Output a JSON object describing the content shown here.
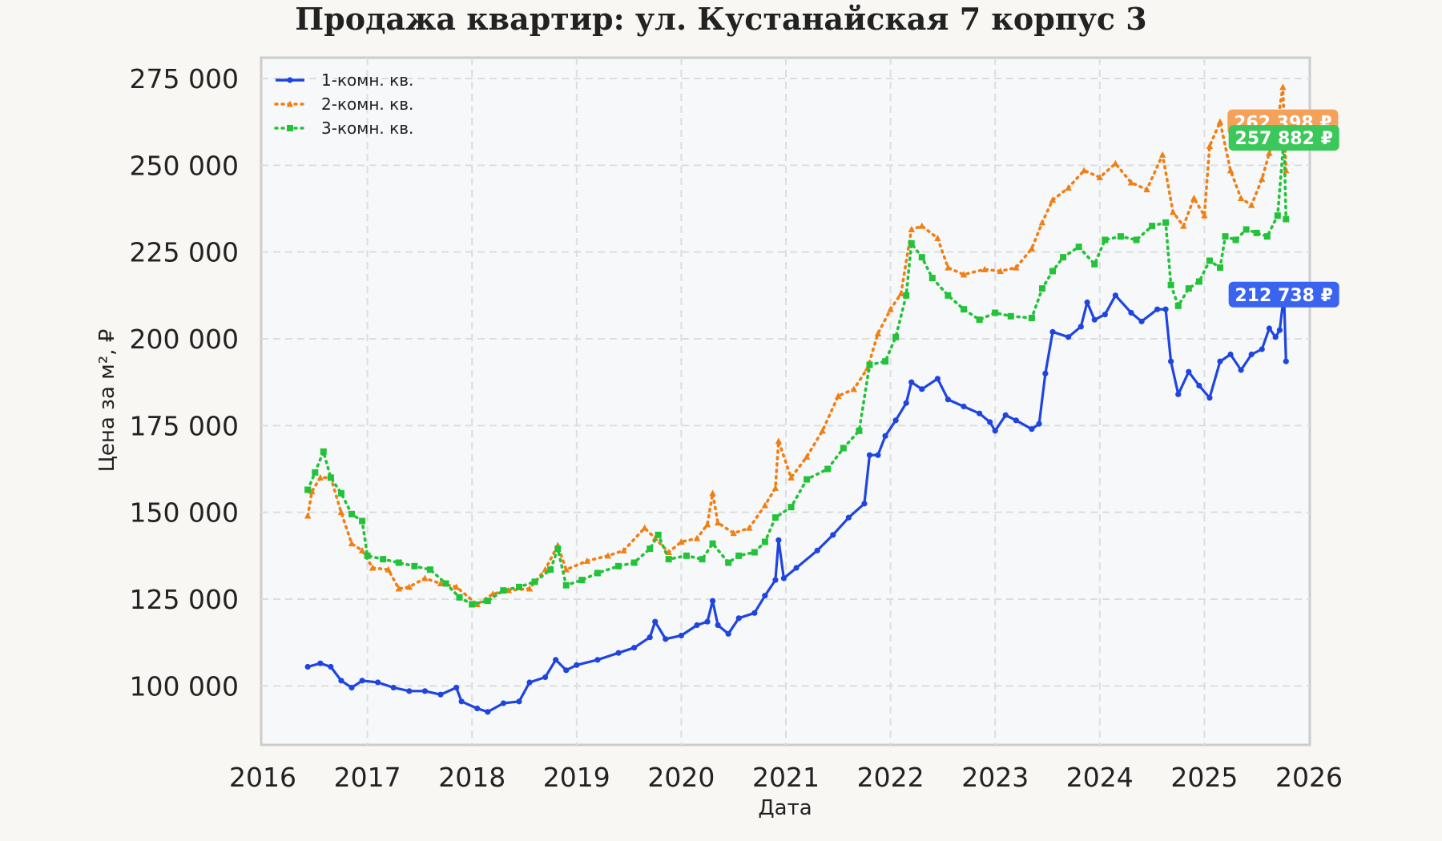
{
  "chart_data": {
    "type": "line",
    "title": "Продажа квартир: ул. Кустанайская 7 корпус 3",
    "xlabel": "Дата",
    "ylabel": "Цена за м², ₽",
    "xlim": [
      2016.0,
      2026.0
    ],
    "ylim": [
      83000,
      281000
    ],
    "x_ticks": [
      "2016",
      "2017",
      "2018",
      "2019",
      "2020",
      "2021",
      "2022",
      "2023",
      "2024",
      "2025",
      "2026"
    ],
    "y_ticks": [
      "100 000",
      "125 000",
      "150 000",
      "175 000",
      "200 000",
      "225 000",
      "250 000",
      "275 000"
    ],
    "grid": true,
    "legend_position": "top-left",
    "series": [
      {
        "name": "1-комн. кв.",
        "color": "#1f45e0",
        "line_style": "solid",
        "marker": "circle",
        "points": [
          [
            2016.43,
            105500
          ],
          [
            2016.55,
            106500
          ],
          [
            2016.65,
            105500
          ],
          [
            2016.75,
            101500
          ],
          [
            2016.85,
            99500
          ],
          [
            2016.95,
            101500
          ],
          [
            2017.1,
            101000
          ],
          [
            2017.25,
            99500
          ],
          [
            2017.4,
            98500
          ],
          [
            2017.55,
            98500
          ],
          [
            2017.7,
            97500
          ],
          [
            2017.85,
            99500
          ],
          [
            2017.9,
            95500
          ],
          [
            2018.05,
            93500
          ],
          [
            2018.15,
            92500
          ],
          [
            2018.3,
            95000
          ],
          [
            2018.45,
            95500
          ],
          [
            2018.55,
            101000
          ],
          [
            2018.7,
            102500
          ],
          [
            2018.8,
            107500
          ],
          [
            2018.9,
            104500
          ],
          [
            2019.0,
            106000
          ],
          [
            2019.2,
            107500
          ],
          [
            2019.4,
            109500
          ],
          [
            2019.55,
            111000
          ],
          [
            2019.7,
            114000
          ],
          [
            2019.75,
            118500
          ],
          [
            2019.85,
            113500
          ],
          [
            2020.0,
            114500
          ],
          [
            2020.15,
            117500
          ],
          [
            2020.25,
            118500
          ],
          [
            2020.3,
            124500
          ],
          [
            2020.35,
            117500
          ],
          [
            2020.45,
            115000
          ],
          [
            2020.55,
            119500
          ],
          [
            2020.7,
            121000
          ],
          [
            2020.8,
            126000
          ],
          [
            2020.9,
            130500
          ],
          [
            2020.93,
            142000
          ],
          [
            2020.98,
            131000
          ],
          [
            2021.1,
            134000
          ],
          [
            2021.3,
            139000
          ],
          [
            2021.45,
            143500
          ],
          [
            2021.6,
            148500
          ],
          [
            2021.75,
            152500
          ],
          [
            2021.8,
            166500
          ],
          [
            2021.88,
            166500
          ],
          [
            2021.95,
            172000
          ],
          [
            2022.05,
            176500
          ],
          [
            2022.15,
            181500
          ],
          [
            2022.2,
            187500
          ],
          [
            2022.3,
            185500
          ],
          [
            2022.45,
            188500
          ],
          [
            2022.55,
            182500
          ],
          [
            2022.7,
            180500
          ],
          [
            2022.85,
            178500
          ],
          [
            2022.95,
            176000
          ],
          [
            2023.0,
            173500
          ],
          [
            2023.1,
            178000
          ],
          [
            2023.2,
            176500
          ],
          [
            2023.35,
            174000
          ],
          [
            2023.42,
            175500
          ],
          [
            2023.48,
            190000
          ],
          [
            2023.55,
            202000
          ],
          [
            2023.7,
            200500
          ],
          [
            2023.82,
            203500
          ],
          [
            2023.88,
            210500
          ],
          [
            2023.95,
            205500
          ],
          [
            2024.05,
            207000
          ],
          [
            2024.15,
            212500
          ],
          [
            2024.3,
            207500
          ],
          [
            2024.4,
            205000
          ],
          [
            2024.55,
            208500
          ],
          [
            2024.63,
            208500
          ],
          [
            2024.68,
            193500
          ],
          [
            2024.75,
            184000
          ],
          [
            2024.85,
            190500
          ],
          [
            2024.95,
            186500
          ],
          [
            2025.05,
            183000
          ],
          [
            2025.15,
            193500
          ],
          [
            2025.25,
            195500
          ],
          [
            2025.35,
            191000
          ],
          [
            2025.45,
            195500
          ],
          [
            2025.55,
            197000
          ],
          [
            2025.62,
            203000
          ],
          [
            2025.68,
            200500
          ],
          [
            2025.72,
            202500
          ],
          [
            2025.76,
            212738
          ],
          [
            2025.78,
            193500
          ]
        ]
      },
      {
        "name": "2-комн. кв.",
        "color": "#f07f14",
        "line_style": "dotted",
        "marker": "triangle",
        "points": [
          [
            2016.43,
            149000
          ],
          [
            2016.47,
            156000
          ],
          [
            2016.55,
            160000
          ],
          [
            2016.65,
            160000
          ],
          [
            2016.75,
            150000
          ],
          [
            2016.85,
            141000
          ],
          [
            2016.95,
            139000
          ],
          [
            2017.05,
            134000
          ],
          [
            2017.2,
            133500
          ],
          [
            2017.3,
            128000
          ],
          [
            2017.4,
            128500
          ],
          [
            2017.55,
            131000
          ],
          [
            2017.7,
            129500
          ],
          [
            2017.85,
            128500
          ],
          [
            2018.05,
            123500
          ],
          [
            2018.2,
            126500
          ],
          [
            2018.35,
            127500
          ],
          [
            2018.55,
            128000
          ],
          [
            2018.7,
            133500
          ],
          [
            2018.82,
            140500
          ],
          [
            2018.9,
            133500
          ],
          [
            2019.1,
            136000
          ],
          [
            2019.3,
            137500
          ],
          [
            2019.45,
            139000
          ],
          [
            2019.65,
            145500
          ],
          [
            2019.75,
            142500
          ],
          [
            2019.88,
            138500
          ],
          [
            2020.0,
            141500
          ],
          [
            2020.15,
            142500
          ],
          [
            2020.25,
            146500
          ],
          [
            2020.3,
            155500
          ],
          [
            2020.35,
            147000
          ],
          [
            2020.5,
            144000
          ],
          [
            2020.65,
            145500
          ],
          [
            2020.8,
            152000
          ],
          [
            2020.9,
            157000
          ],
          [
            2020.93,
            170500
          ],
          [
            2021.05,
            160000
          ],
          [
            2021.2,
            166000
          ],
          [
            2021.35,
            173500
          ],
          [
            2021.5,
            183500
          ],
          [
            2021.65,
            185500
          ],
          [
            2021.78,
            191500
          ],
          [
            2021.88,
            201500
          ],
          [
            2022.0,
            208500
          ],
          [
            2022.1,
            213000
          ],
          [
            2022.2,
            231500
          ],
          [
            2022.3,
            232500
          ],
          [
            2022.45,
            229000
          ],
          [
            2022.55,
            220500
          ],
          [
            2022.7,
            218500
          ],
          [
            2022.9,
            220000
          ],
          [
            2023.05,
            219500
          ],
          [
            2023.2,
            220500
          ],
          [
            2023.35,
            226000
          ],
          [
            2023.45,
            233500
          ],
          [
            2023.55,
            240000
          ],
          [
            2023.7,
            243500
          ],
          [
            2023.85,
            248500
          ],
          [
            2024.0,
            246500
          ],
          [
            2024.15,
            250500
          ],
          [
            2024.3,
            245000
          ],
          [
            2024.45,
            243000
          ],
          [
            2024.6,
            253000
          ],
          [
            2024.7,
            236500
          ],
          [
            2024.8,
            232500
          ],
          [
            2024.9,
            240500
          ],
          [
            2025.0,
            235500
          ],
          [
            2025.05,
            255500
          ],
          [
            2025.15,
            262500
          ],
          [
            2025.25,
            248500
          ],
          [
            2025.35,
            240500
          ],
          [
            2025.45,
            238500
          ],
          [
            2025.55,
            246000
          ],
          [
            2025.62,
            253500
          ],
          [
            2025.7,
            262398
          ],
          [
            2025.75,
            272500
          ],
          [
            2025.78,
            248500
          ]
        ]
      },
      {
        "name": "3-комн. кв.",
        "color": "#22c239",
        "line_style": "dotted",
        "marker": "square",
        "points": [
          [
            2016.43,
            156500
          ],
          [
            2016.5,
            161500
          ],
          [
            2016.58,
            167500
          ],
          [
            2016.65,
            160000
          ],
          [
            2016.75,
            155500
          ],
          [
            2016.85,
            149500
          ],
          [
            2016.95,
            147500
          ],
          [
            2017.0,
            137500
          ],
          [
            2017.15,
            136500
          ],
          [
            2017.3,
            135500
          ],
          [
            2017.45,
            134500
          ],
          [
            2017.6,
            133500
          ],
          [
            2017.75,
            129500
          ],
          [
            2017.88,
            125500
          ],
          [
            2018.0,
            123500
          ],
          [
            2018.15,
            124500
          ],
          [
            2018.3,
            127500
          ],
          [
            2018.45,
            128500
          ],
          [
            2018.6,
            130000
          ],
          [
            2018.75,
            133500
          ],
          [
            2018.82,
            139500
          ],
          [
            2018.9,
            129000
          ],
          [
            2019.05,
            130500
          ],
          [
            2019.2,
            132500
          ],
          [
            2019.4,
            134500
          ],
          [
            2019.55,
            135500
          ],
          [
            2019.7,
            139500
          ],
          [
            2019.78,
            143500
          ],
          [
            2019.88,
            136500
          ],
          [
            2020.05,
            137500
          ],
          [
            2020.2,
            136500
          ],
          [
            2020.3,
            141000
          ],
          [
            2020.45,
            135500
          ],
          [
            2020.55,
            137500
          ],
          [
            2020.7,
            138500
          ],
          [
            2020.8,
            141500
          ],
          [
            2020.9,
            148500
          ],
          [
            2021.05,
            151500
          ],
          [
            2021.2,
            159500
          ],
          [
            2021.4,
            162500
          ],
          [
            2021.55,
            168500
          ],
          [
            2021.7,
            173500
          ],
          [
            2021.8,
            192500
          ],
          [
            2021.95,
            193500
          ],
          [
            2022.05,
            200500
          ],
          [
            2022.15,
            212500
          ],
          [
            2022.2,
            227500
          ],
          [
            2022.3,
            223500
          ],
          [
            2022.4,
            217500
          ],
          [
            2022.55,
            212500
          ],
          [
            2022.7,
            208500
          ],
          [
            2022.85,
            205500
          ],
          [
            2023.0,
            207500
          ],
          [
            2023.15,
            206500
          ],
          [
            2023.35,
            206000
          ],
          [
            2023.45,
            214500
          ],
          [
            2023.55,
            219500
          ],
          [
            2023.65,
            223500
          ],
          [
            2023.8,
            226500
          ],
          [
            2023.95,
            221500
          ],
          [
            2024.05,
            228500
          ],
          [
            2024.2,
            229500
          ],
          [
            2024.35,
            228500
          ],
          [
            2024.5,
            232500
          ],
          [
            2024.63,
            233500
          ],
          [
            2024.68,
            215500
          ],
          [
            2024.75,
            209500
          ],
          [
            2024.85,
            214500
          ],
          [
            2024.95,
            216500
          ],
          [
            2025.05,
            222500
          ],
          [
            2025.15,
            220500
          ],
          [
            2025.2,
            229500
          ],
          [
            2025.3,
            228500
          ],
          [
            2025.4,
            231500
          ],
          [
            2025.5,
            230500
          ],
          [
            2025.6,
            229500
          ],
          [
            2025.7,
            235500
          ],
          [
            2025.76,
            257882
          ],
          [
            2025.78,
            234500
          ]
        ]
      }
    ],
    "end_labels": [
      {
        "series": 1,
        "text": "262 398 ₽",
        "value": 262398,
        "color": "#f5a15a"
      },
      {
        "series": 2,
        "text": "257 882 ₽",
        "value": 257882,
        "color": "#3cc75a"
      },
      {
        "series": 0,
        "text": "212 738 ₽",
        "value": 212738,
        "color": "#3a63f0"
      }
    ]
  }
}
